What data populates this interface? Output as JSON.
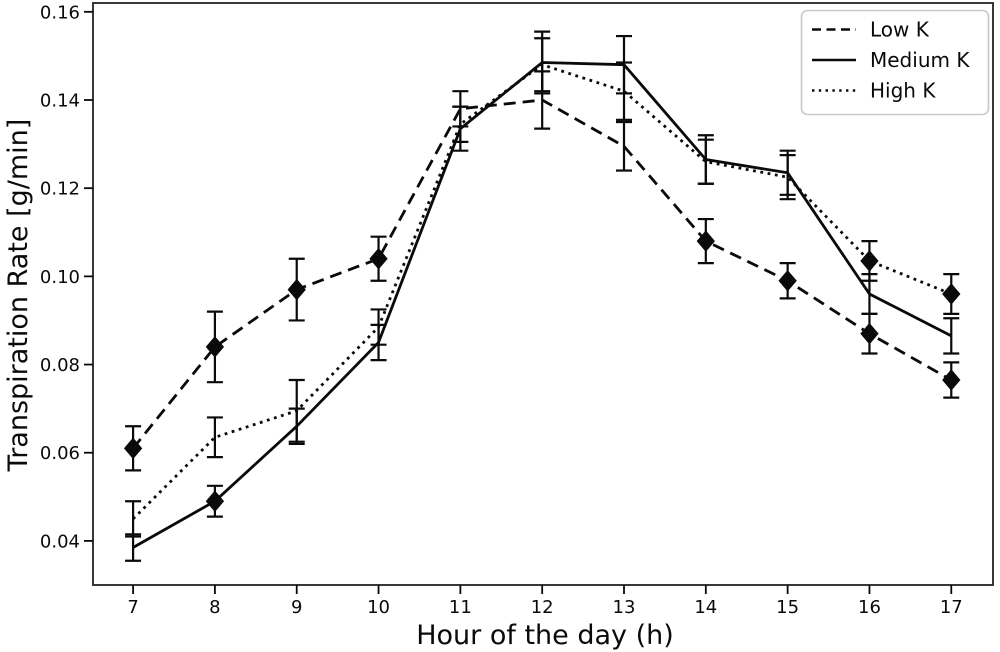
{
  "figure": {
    "background": "#ffffff",
    "ink_color": "#0a0a0a",
    "legend_border_color": "#c9c9c9"
  },
  "chart_data": {
    "type": "line",
    "title": "",
    "xlabel": "Hour of the day (h)",
    "ylabel": "Transpiration Rate [g/min]",
    "x": [
      7,
      8,
      9,
      10,
      11,
      12,
      13,
      14,
      15,
      16,
      17
    ],
    "xticks": {
      "values": [
        7,
        8,
        9,
        10,
        11,
        12,
        13,
        14,
        15,
        16,
        17
      ],
      "labels": [
        "7",
        "8",
        "9",
        "10",
        "11",
        "12",
        "13",
        "14",
        "15",
        "16",
        "17"
      ]
    },
    "yticks": {
      "values": [
        0.04,
        0.06,
        0.08,
        0.1,
        0.12,
        0.14,
        0.16
      ],
      "labels": [
        "0.04",
        "0.06",
        "0.08",
        "0.10",
        "0.12",
        "0.14",
        "0.16"
      ]
    },
    "xlim": [
      6.51,
      17.51
    ],
    "ylim": [
      0.03,
      0.162
    ],
    "grid": false,
    "error_bars": true,
    "legend": {
      "position": "upper right",
      "border": true
    },
    "series": [
      {
        "name": "Low K",
        "line_style": "dashed",
        "color": "#0a0a0a",
        "marker": "diamond",
        "marker_x": [
          7,
          8,
          9,
          10,
          14,
          15,
          16,
          17
        ],
        "values": [
          0.061,
          0.084,
          0.097,
          0.104,
          0.138,
          0.14,
          0.1295,
          0.108,
          0.099,
          0.087,
          0.0765
        ],
        "errors": [
          0.005,
          0.008,
          0.007,
          0.005,
          0.004,
          0.0065,
          0.0055,
          0.005,
          0.004,
          0.0045,
          0.004
        ]
      },
      {
        "name": "Medium K",
        "line_style": "solid",
        "color": "#0a0a0a",
        "marker": "diamond",
        "marker_x": [
          8
        ],
        "values": [
          0.0385,
          0.049,
          0.066,
          0.085,
          0.1335,
          0.1485,
          0.148,
          0.1265,
          0.1235,
          0.096,
          0.0865
        ],
        "errors": [
          0.003,
          0.0035,
          0.004,
          0.004,
          0.005,
          0.007,
          0.0065,
          0.0055,
          0.005,
          0.0045,
          0.004
        ]
      },
      {
        "name": "High K",
        "line_style": "dotted",
        "color": "#0a0a0a",
        "marker": "diamond",
        "marker_x": [
          16,
          17
        ],
        "values": [
          0.045,
          0.0635,
          0.0695,
          0.0885,
          0.1345,
          0.148,
          0.142,
          0.126,
          0.1225,
          0.1035,
          0.096
        ],
        "errors": [
          0.004,
          0.0045,
          0.007,
          0.004,
          0.004,
          0.006,
          0.0065,
          0.005,
          0.005,
          0.0045,
          0.0045
        ]
      }
    ]
  }
}
